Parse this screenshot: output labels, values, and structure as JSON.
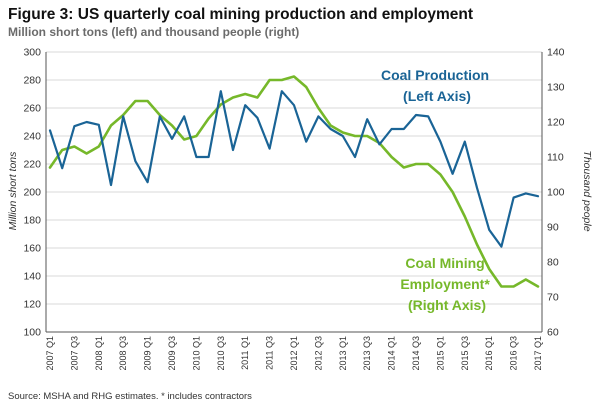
{
  "title": "Figure 3: US quarterly coal mining production and employment",
  "subtitle": "Million short tons (left) and thousand people (right)",
  "source": "Source: MSHA and RHG estimates. * includes contractors",
  "colors": {
    "production": "#1a6496",
    "employment": "#76b82a",
    "grid": "#d9d9d9"
  },
  "chart_data": {
    "type": "line",
    "grid": true,
    "x_tick_labels": [
      "2007 Q1",
      "2007 Q3",
      "2008 Q1",
      "2008 Q3",
      "2009 Q1",
      "2009 Q3",
      "2010 Q1",
      "2010 Q3",
      "2011 Q1",
      "2011 Q3",
      "2012 Q1",
      "2012 Q3",
      "2013 Q1",
      "2013 Q3",
      "2014 Q1",
      "2014 Q3",
      "2015 Q1",
      "2015 Q3",
      "2016 Q1",
      "2016 Q3",
      "2017 Q1"
    ],
    "ylabel_left": "Million short tons",
    "ylabel_right": "Thousand people",
    "ylim_left": [
      100,
      300
    ],
    "ylim_right": [
      60,
      140
    ],
    "yticks_left": [
      100,
      120,
      140,
      160,
      180,
      200,
      220,
      240,
      260,
      280,
      300
    ],
    "yticks_right": [
      60,
      70,
      80,
      90,
      100,
      110,
      120,
      130,
      140
    ],
    "series": [
      {
        "name": "Coal Production",
        "axis": "left",
        "values": [
          244,
          217,
          247,
          250,
          248,
          205,
          254,
          222,
          207,
          254,
          238,
          254,
          225,
          225,
          272,
          230,
          262,
          253,
          231,
          272,
          262,
          236,
          254,
          245,
          240,
          225,
          252,
          234,
          245,
          245,
          255,
          254,
          236,
          213,
          236,
          203,
          173,
          161,
          196,
          199,
          197
        ]
      },
      {
        "name": "Coal Mining Employment*",
        "axis": "right",
        "values": [
          107,
          112,
          113,
          111,
          113,
          119,
          122,
          126,
          126,
          122,
          119,
          115,
          116,
          121,
          125,
          127,
          128,
          127,
          132,
          132,
          133,
          130,
          124,
          119,
          117,
          116,
          116,
          114,
          110,
          107,
          108,
          108,
          105,
          100,
          93,
          85,
          78,
          73,
          73,
          75,
          73
        ]
      }
    ],
    "annotations": [
      {
        "series": "Coal Production",
        "lines": [
          "Coal Production",
          "(Left Axis)"
        ]
      },
      {
        "series": "Coal Mining Employment*",
        "lines": [
          "Coal Mining",
          "Employment*",
          "(Right Axis)"
        ]
      }
    ]
  }
}
